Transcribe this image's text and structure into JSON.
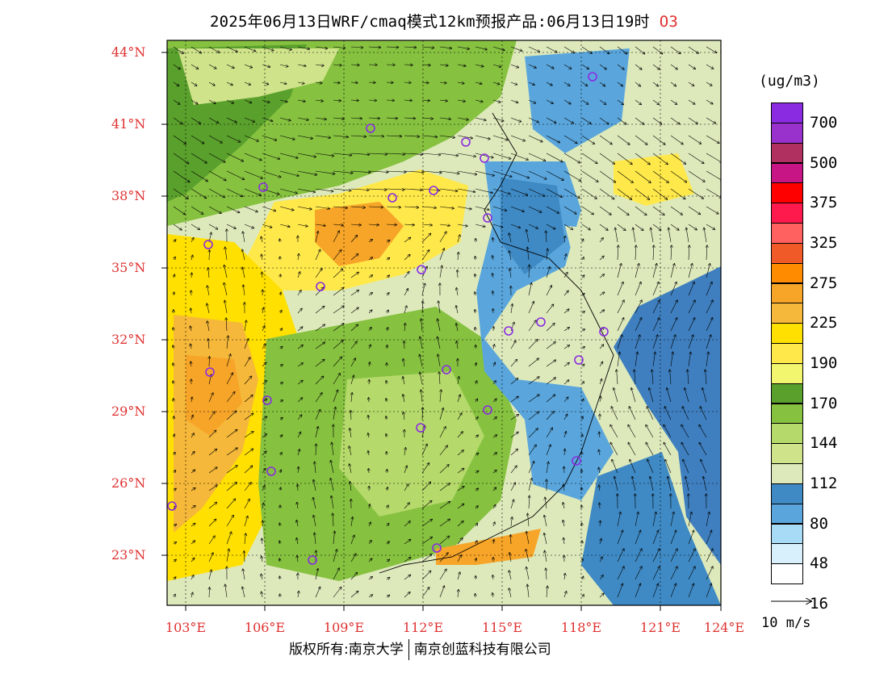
{
  "header": {
    "title": "2025年06月13日WRF/cmaq模式12km预报产品:06月13日19时",
    "species": "O3"
  },
  "axes": {
    "lat_labels": [
      "44°N",
      "41°N",
      "38°N",
      "35°N",
      "32°N",
      "29°N",
      "26°N",
      "23°N"
    ],
    "lon_labels": [
      "103°E",
      "106°E",
      "109°E",
      "112°E",
      "115°E",
      "118°E",
      "121°E",
      "124°E"
    ]
  },
  "legend": {
    "units": "(ug/m3)",
    "levels": [
      "700",
      "500",
      "375",
      "325",
      "275",
      "225",
      "190",
      "170",
      "144",
      "112",
      "80",
      "48",
      "16"
    ],
    "colors": [
      "#8a2be2",
      "#9932cc",
      "#b03060",
      "#c71585",
      "#ff0000",
      "#ff1a4d",
      "#ff6060",
      "#f05a28",
      "#ff8c00",
      "#f7a528",
      "#f5b83a",
      "#ffe000",
      "#ffe84a",
      "#f2f56e",
      "#5aa02c",
      "#86c140",
      "#b5d96a",
      "#cfe38a",
      "#dde9bb",
      "#3f8ac4",
      "#5aa6dc",
      "#a8dbf5",
      "#d8f0fb",
      "#ffffff"
    ]
  },
  "reference_vector": {
    "label": "10 m/s"
  },
  "footer": {
    "left": "版权所有:南京大学",
    "right": "南京创蓝科技有限公司"
  },
  "map": {
    "background": "#dde9bb",
    "sea_color": "#3f7fbf"
  }
}
